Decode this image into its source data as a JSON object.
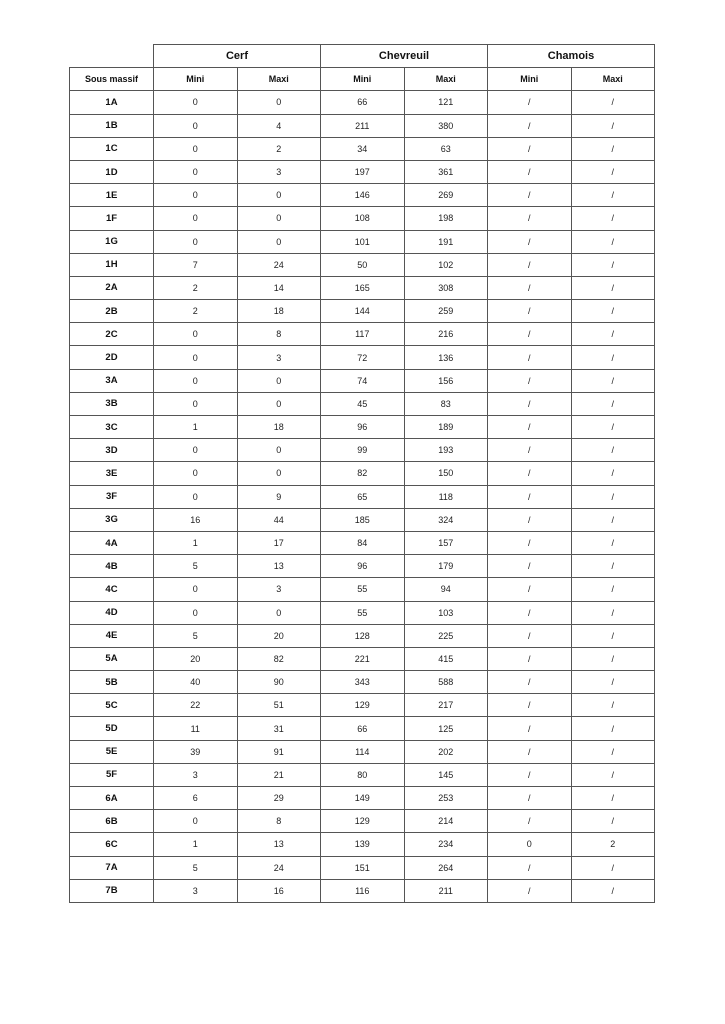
{
  "table": {
    "groups": [
      "Cerf",
      "Chevreuil",
      "Chamois"
    ],
    "first_column_header": "Sous massif",
    "sub_headers": [
      "Mini",
      "Maxi",
      "Mini",
      "Maxi",
      "Mini",
      "Maxi"
    ],
    "rows": [
      [
        "1A",
        "0",
        "0",
        "66",
        "121",
        "/",
        "/"
      ],
      [
        "1B",
        "0",
        "4",
        "211",
        "380",
        "/",
        "/"
      ],
      [
        "1C",
        "0",
        "2",
        "34",
        "63",
        "/",
        "/"
      ],
      [
        "1D",
        "0",
        "3",
        "197",
        "361",
        "/",
        "/"
      ],
      [
        "1E",
        "0",
        "0",
        "146",
        "269",
        "/",
        "/"
      ],
      [
        "1F",
        "0",
        "0",
        "108",
        "198",
        "/",
        "/"
      ],
      [
        "1G",
        "0",
        "0",
        "101",
        "191",
        "/",
        "/"
      ],
      [
        "1H",
        "7",
        "24",
        "50",
        "102",
        "/",
        "/"
      ],
      [
        "2A",
        "2",
        "14",
        "165",
        "308",
        "/",
        "/"
      ],
      [
        "2B",
        "2",
        "18",
        "144",
        "259",
        "/",
        "/"
      ],
      [
        "2C",
        "0",
        "8",
        "117",
        "216",
        "/",
        "/"
      ],
      [
        "2D",
        "0",
        "3",
        "72",
        "136",
        "/",
        "/"
      ],
      [
        "3A",
        "0",
        "0",
        "74",
        "156",
        "/",
        "/"
      ],
      [
        "3B",
        "0",
        "0",
        "45",
        "83",
        "/",
        "/"
      ],
      [
        "3C",
        "1",
        "18",
        "96",
        "189",
        "/",
        "/"
      ],
      [
        "3D",
        "0",
        "0",
        "99",
        "193",
        "/",
        "/"
      ],
      [
        "3E",
        "0",
        "0",
        "82",
        "150",
        "/",
        "/"
      ],
      [
        "3F",
        "0",
        "9",
        "65",
        "118",
        "/",
        "/"
      ],
      [
        "3G",
        "16",
        "44",
        "185",
        "324",
        "/",
        "/"
      ],
      [
        "4A",
        "1",
        "17",
        "84",
        "157",
        "/",
        "/"
      ],
      [
        "4B",
        "5",
        "13",
        "96",
        "179",
        "/",
        "/"
      ],
      [
        "4C",
        "0",
        "3",
        "55",
        "94",
        "/",
        "/"
      ],
      [
        "4D",
        "0",
        "0",
        "55",
        "103",
        "/",
        "/"
      ],
      [
        "4E",
        "5",
        "20",
        "128",
        "225",
        "/",
        "/"
      ],
      [
        "5A",
        "20",
        "82",
        "221",
        "415",
        "/",
        "/"
      ],
      [
        "5B",
        "40",
        "90",
        "343",
        "588",
        "/",
        "/"
      ],
      [
        "5C",
        "22",
        "51",
        "129",
        "217",
        "/",
        "/"
      ],
      [
        "5D",
        "11",
        "31",
        "66",
        "125",
        "/",
        "/"
      ],
      [
        "5E",
        "39",
        "91",
        "114",
        "202",
        "/",
        "/"
      ],
      [
        "5F",
        "3",
        "21",
        "80",
        "145",
        "/",
        "/"
      ],
      [
        "6A",
        "6",
        "29",
        "149",
        "253",
        "/",
        "/"
      ],
      [
        "6B",
        "0",
        "8",
        "129",
        "214",
        "/",
        "/"
      ],
      [
        "6C",
        "1",
        "13",
        "139",
        "234",
        "0",
        "2"
      ],
      [
        "7A",
        "5",
        "24",
        "151",
        "264",
        "/",
        "/"
      ],
      [
        "7B",
        "3",
        "16",
        "116",
        "211",
        "/",
        "/"
      ]
    ]
  }
}
